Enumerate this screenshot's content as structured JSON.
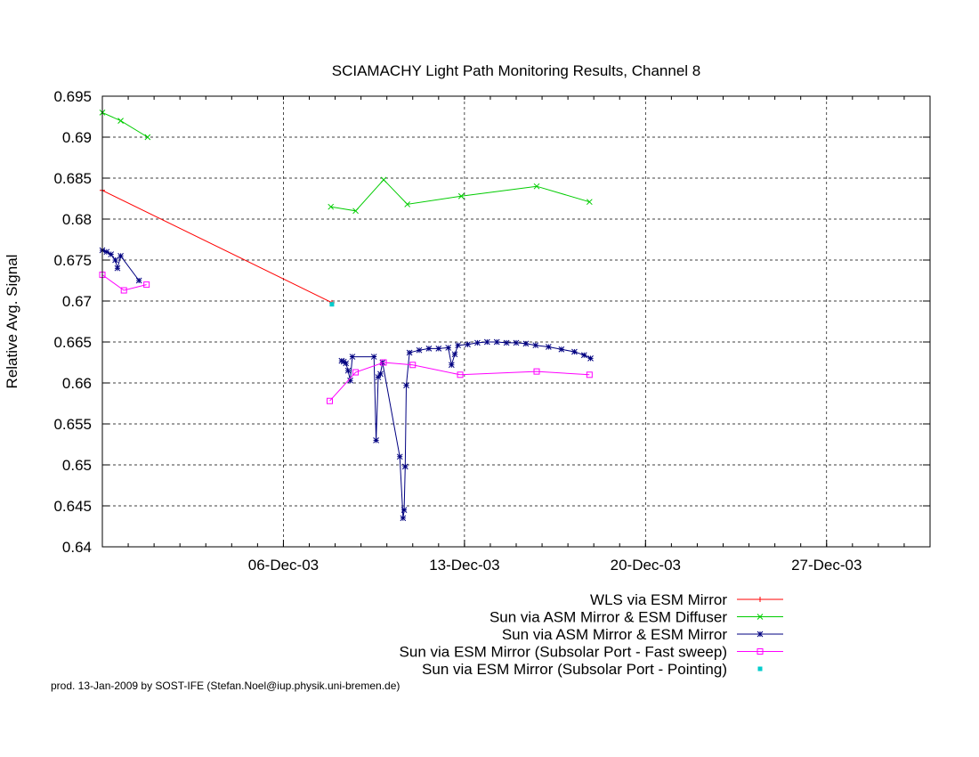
{
  "chart_data": {
    "type": "line",
    "title": "SCIAMACHY Light Path Monitoring Results, Channel 8",
    "xlabel": "",
    "ylabel": "Relative Avg. Signal",
    "xlim": [
      "2003-11-29",
      "2003-12-31"
    ],
    "ylim": [
      0.64,
      0.695
    ],
    "grid": true,
    "legend_position": "bottom-right",
    "x_ticks": [
      {
        "date": "2003-12-06",
        "label": "06-Dec-03"
      },
      {
        "date": "2003-12-13",
        "label": "13-Dec-03"
      },
      {
        "date": "2003-12-20",
        "label": "20-Dec-03"
      },
      {
        "date": "2003-12-27",
        "label": "27-Dec-03"
      }
    ],
    "y_ticks": [
      "0.64",
      "0.645",
      "0.65",
      "0.655",
      "0.66",
      "0.665",
      "0.67",
      "0.675",
      "0.68",
      "0.685",
      "0.69",
      "0.695"
    ],
    "series": [
      {
        "name": "WLS via ESM Mirror",
        "color": "#ff0000",
        "marker": "plus",
        "points": [
          [
            "2003-11-29 00:00",
            0.6835
          ],
          [
            "2003-12-07 21:00",
            0.6698
          ]
        ]
      },
      {
        "name": "Sun via ASM Mirror & ESM Diffuser",
        "color": "#00cc00",
        "marker": "x",
        "segments": [
          [
            [
              "2003-11-29 00:00",
              0.693
            ],
            [
              "2003-11-29 17:00",
              0.692
            ],
            [
              "2003-11-30 18:00",
              0.69
            ]
          ],
          [
            [
              "2003-12-07 20:00",
              0.6815
            ],
            [
              "2003-12-08 19:00",
              0.681
            ],
            [
              "2003-12-09 21:00",
              0.6848
            ],
            [
              "2003-12-10 19:00",
              0.6818
            ],
            [
              "2003-12-12 21:00",
              0.6828
            ],
            [
              "2003-12-15 19:00",
              0.684
            ],
            [
              "2003-12-17 20:00",
              0.6821
            ]
          ]
        ]
      },
      {
        "name": "Sun via ASM Mirror & ESM Mirror",
        "color": "#000080",
        "marker": "star",
        "segments": [
          [
            [
              "2003-11-29 00:00",
              0.6762
            ],
            [
              "2003-11-29 04:00",
              0.676
            ],
            [
              "2003-11-29 08:00",
              0.6757
            ],
            [
              "2003-11-29 12:00",
              0.675
            ],
            [
              "2003-11-29 14:00",
              0.674
            ],
            [
              "2003-11-29 17:00",
              0.6755
            ],
            [
              "2003-11-30 10:00",
              0.6725
            ]
          ],
          [
            [
              "2003-12-08 06:00",
              0.6627
            ],
            [
              "2003-12-08 08:00",
              0.6626
            ],
            [
              "2003-12-08 10:00",
              0.6624
            ],
            [
              "2003-12-08 12:00",
              0.6615
            ],
            [
              "2003-12-08 14:00",
              0.6603
            ],
            [
              "2003-12-08 16:00",
              0.6632
            ],
            [
              "2003-12-09 12:00",
              0.6632
            ],
            [
              "2003-12-09 14:00",
              0.653
            ],
            [
              "2003-12-09 16:00",
              0.6607
            ],
            [
              "2003-12-09 18:00",
              0.6611
            ],
            [
              "2003-12-09 20:00",
              0.6625
            ],
            [
              "2003-12-10 12:00",
              0.651
            ],
            [
              "2003-12-10 15:00",
              0.6435
            ],
            [
              "2003-12-10 16:00",
              0.6445
            ],
            [
              "2003-12-10 17:00",
              0.6498
            ],
            [
              "2003-12-10 18:00",
              0.6597
            ],
            [
              "2003-12-10 21:00",
              0.6637
            ],
            [
              "2003-12-11 06:00",
              0.664
            ],
            [
              "2003-12-11 15:00",
              0.6642
            ],
            [
              "2003-12-12 00:00",
              0.6642
            ],
            [
              "2003-12-12 09:00",
              0.6643
            ],
            [
              "2003-12-12 12:00",
              0.6622
            ],
            [
              "2003-12-12 15:00",
              0.6635
            ],
            [
              "2003-12-12 18:00",
              0.6646
            ],
            [
              "2003-12-13 03:00",
              0.6647
            ],
            [
              "2003-12-13 12:00",
              0.6649
            ],
            [
              "2003-12-13 21:00",
              0.665
            ],
            [
              "2003-12-14 06:00",
              0.665
            ],
            [
              "2003-12-14 15:00",
              0.6649
            ],
            [
              "2003-12-15 00:00",
              0.6649
            ],
            [
              "2003-12-15 09:00",
              0.6648
            ],
            [
              "2003-12-15 18:00",
              0.6646
            ],
            [
              "2003-12-16 06:00",
              0.6644
            ],
            [
              "2003-12-16 18:00",
              0.6641
            ],
            [
              "2003-12-17 06:00",
              0.6638
            ],
            [
              "2003-12-17 15:00",
              0.6634
            ],
            [
              "2003-12-17 21:00",
              0.663
            ]
          ]
        ]
      },
      {
        "name": "Sun via ESM Mirror (Subsolar Port - Fast sweep)",
        "color": "#ff00ff",
        "marker": "square",
        "segments": [
          [
            [
              "2003-11-29 00:00",
              0.6732
            ],
            [
              "2003-11-29 20:00",
              0.6713
            ],
            [
              "2003-11-30 17:00",
              0.672
            ]
          ],
          [
            [
              "2003-12-07 19:00",
              0.6578
            ],
            [
              "2003-12-08 19:00",
              0.6613
            ],
            [
              "2003-12-09 21:00",
              0.6625
            ],
            [
              "2003-12-11 00:00",
              0.6622
            ],
            [
              "2003-12-12 20:00",
              0.661
            ],
            [
              "2003-12-15 19:00",
              0.6614
            ],
            [
              "2003-12-17 20:00",
              0.661
            ]
          ]
        ]
      },
      {
        "name": "Sun via ESM Mirror (Subsolar Port - Pointing)",
        "color": "#00cccc",
        "marker": "dot",
        "points": [
          [
            "2003-12-07 21:00",
            0.6696
          ]
        ]
      }
    ]
  },
  "footer": "prod. 13-Jan-2009 by SOST-IFE (Stefan.Noel@iup.physik.uni-bremen.de)"
}
